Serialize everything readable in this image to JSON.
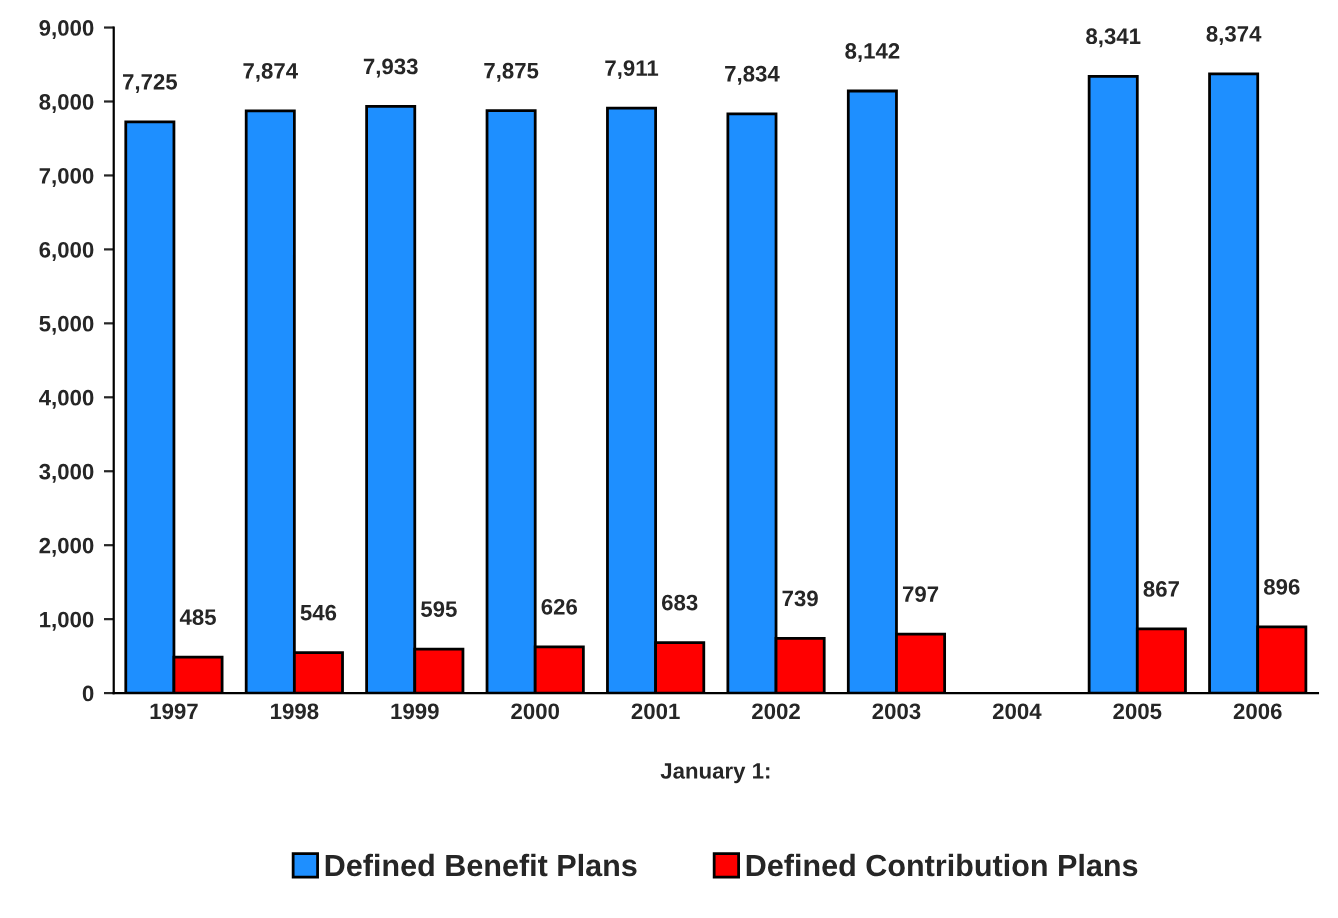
{
  "chart_data": {
    "type": "bar",
    "xlabel": "January 1:",
    "categories": [
      "1997",
      "1998",
      "1999",
      "2000",
      "2001",
      "2002",
      "2003",
      "2004",
      "2005",
      "2006"
    ],
    "series": [
      {
        "name": "Defined Benefit Plans",
        "color": "#1e8fff",
        "values": [
          7725,
          7874,
          7933,
          7875,
          7911,
          7834,
          8142,
          null,
          8341,
          8374
        ],
        "value_labels": [
          "7,725",
          "7,874",
          "7,933",
          "7,875",
          "7,911",
          "7,834",
          "8,142",
          null,
          "8,341",
          "8,374"
        ]
      },
      {
        "name": "Defined Contribution Plans",
        "color": "#ff0000",
        "values": [
          485,
          546,
          595,
          626,
          683,
          739,
          797,
          null,
          867,
          896
        ],
        "value_labels": [
          "485",
          "546",
          "595",
          "626",
          "683",
          "739",
          "797",
          null,
          "867",
          "896"
        ]
      }
    ],
    "ylim": [
      0,
      9000
    ],
    "yticks": [
      0,
      {
        "value": 1000,
        "label": "1,000"
      },
      {
        "value": 2000,
        "label": "2,000"
      },
      {
        "value": 3000,
        "label": "3,000"
      },
      {
        "value": 4000,
        "label": "4,000"
      },
      {
        "value": 5000,
        "label": "5,000"
      },
      {
        "value": 6000,
        "label": "6,000"
      },
      {
        "value": 7000,
        "label": "7,000"
      },
      {
        "value": 8000,
        "label": "8,000"
      },
      {
        "value": 9000,
        "label": "9,000"
      }
    ],
    "grid": false,
    "legend": "bottom"
  }
}
